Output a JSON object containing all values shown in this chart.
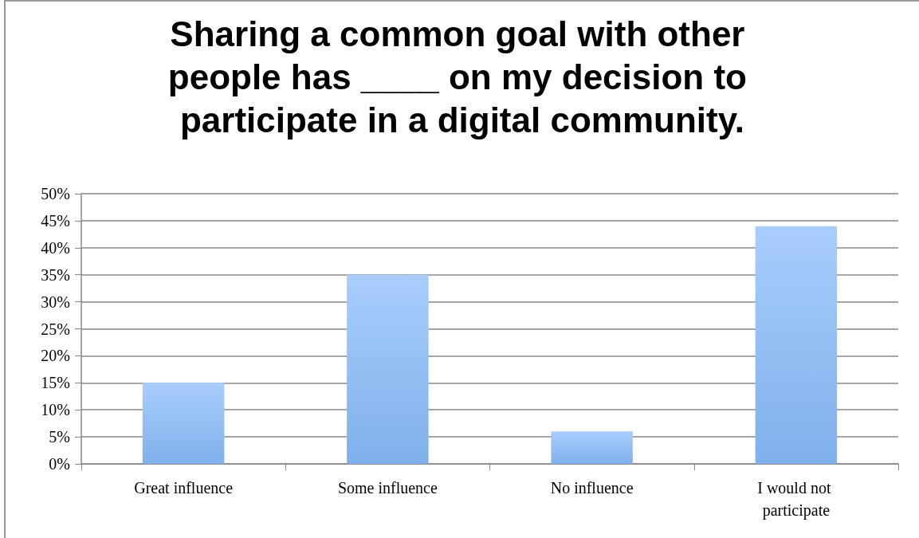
{
  "chart_data": {
    "type": "bar",
    "title": "Sharing a common goal with other people has ____ on my decision to participate in a digital community.",
    "categories": [
      "Great influence",
      "Some influence",
      "No influence",
      "I would not participate"
    ],
    "values": [
      15,
      35,
      6,
      44
    ],
    "color": "#7fb0ea",
    "ylim": [
      0,
      50
    ],
    "yticks": [
      {
        "value": 0,
        "label": "0%"
      },
      {
        "value": 5,
        "label": "5%"
      },
      {
        "value": 10,
        "label": "10%"
      },
      {
        "value": 15,
        "label": "15%"
      },
      {
        "value": 20,
        "label": "20%"
      },
      {
        "value": 25,
        "label": "25%"
      },
      {
        "value": 30,
        "label": "30%"
      },
      {
        "value": 35,
        "label": "35%"
      },
      {
        "value": 40,
        "label": "40%"
      },
      {
        "value": 45,
        "label": "45%"
      },
      {
        "value": 50,
        "label": "50%"
      }
    ],
    "grid": "y"
  }
}
